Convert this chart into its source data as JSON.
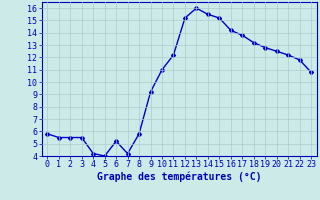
{
  "hours": [
    0,
    1,
    2,
    3,
    4,
    5,
    6,
    7,
    8,
    9,
    10,
    11,
    12,
    13,
    14,
    15,
    16,
    17,
    18,
    19,
    20,
    21,
    22,
    23
  ],
  "temps": [
    5.8,
    5.5,
    5.5,
    5.5,
    4.2,
    4.0,
    5.2,
    4.2,
    5.8,
    9.2,
    11.0,
    12.2,
    15.2,
    16.0,
    15.5,
    15.2,
    14.2,
    13.8,
    13.2,
    12.8,
    12.5,
    12.2,
    11.8,
    10.8
  ],
  "line_color": "#0000cc",
  "marker": "D",
  "marker_size": 2.0,
  "bg_color": "#cceae7",
  "grid_color": "#aacccc",
  "xlabel": "Graphe des températures (°C)",
  "ylim": [
    4,
    16.5
  ],
  "xlim": [
    -0.5,
    23.5
  ],
  "yticks": [
    4,
    5,
    6,
    7,
    8,
    9,
    10,
    11,
    12,
    13,
    14,
    15,
    16
  ],
  "xticks": [
    0,
    1,
    2,
    3,
    4,
    5,
    6,
    7,
    8,
    9,
    10,
    11,
    12,
    13,
    14,
    15,
    16,
    17,
    18,
    19,
    20,
    21,
    22,
    23
  ],
  "tick_color": "#0000bb",
  "label_color": "#0000bb",
  "axis_color": "#0000bb",
  "xlabel_fontsize": 7.0,
  "tick_fontsize": 6.0,
  "linewidth": 1.0
}
